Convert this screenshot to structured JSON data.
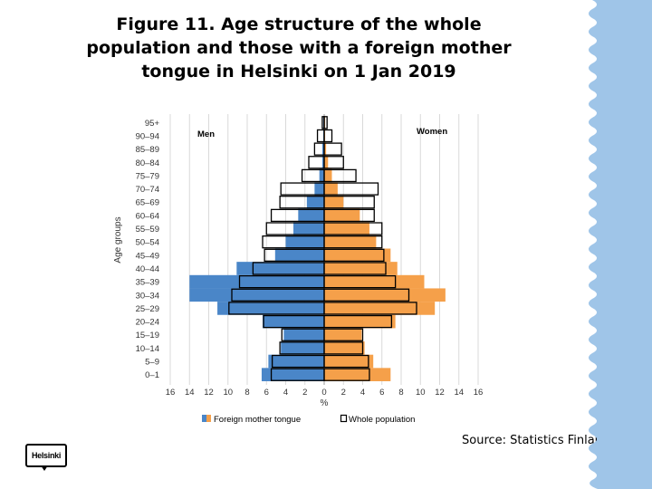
{
  "title_lines": [
    "Figure 11. Age structure of the whole",
    "population and those with a foreign mother",
    "tongue in Helsinki on 1 Jan 2019"
  ],
  "source": "Source: Statistics Finland",
  "logo_text": "Helsinki",
  "colors": {
    "foreign_men": "#4a86c8",
    "foreign_women": "#f5a04a",
    "whole_outline": "#000000",
    "background_strip": "#9fc5e8"
  },
  "chart_data": {
    "type": "bar",
    "orientation": "horizontal-population-pyramid",
    "ylabel": "Age groups",
    "xlabel": "%",
    "left_label": "Men",
    "right_label": "Women",
    "categories": [
      "95+",
      "90–94",
      "85–89",
      "80–84",
      "75–79",
      "70–74",
      "65–69",
      "60–64",
      "55–59",
      "50–54",
      "45–49",
      "40–44",
      "35–39",
      "30–34",
      "25–29",
      "20–24",
      "15–19",
      "10–14",
      "5–9",
      "0–1"
    ],
    "x_ticks": [
      "16",
      "14",
      "12",
      "10",
      "8",
      "6",
      "4",
      "2",
      "0",
      "2",
      "4",
      "6",
      "8",
      "10",
      "12",
      "14",
      "16"
    ],
    "xlim": [
      -16,
      16
    ],
    "grid": true,
    "legend_position": "bottom",
    "series": [
      {
        "name": "Foreign mother tongue",
        "side": "men",
        "values": [
          0.1,
          0.1,
          0.2,
          0.2,
          0.5,
          1.0,
          1.8,
          2.7,
          3.2,
          4.0,
          5.1,
          9.1,
          14.0,
          14.0,
          11.1,
          6.4,
          4.2,
          4.5,
          5.8,
          6.5
        ]
      },
      {
        "name": "Foreign mother tongue",
        "side": "women",
        "values": [
          0.1,
          0.1,
          0.2,
          0.4,
          0.8,
          1.4,
          2.0,
          3.7,
          4.7,
          5.4,
          6.9,
          7.6,
          10.4,
          12.6,
          11.5,
          7.4,
          3.9,
          4.2,
          5.1,
          6.9
        ]
      },
      {
        "name": "Whole population",
        "side": "men",
        "values": [
          0.2,
          0.7,
          1.0,
          1.6,
          2.3,
          4.5,
          4.6,
          5.5,
          6.0,
          6.4,
          6.2,
          7.4,
          8.8,
          9.6,
          9.9,
          6.3,
          4.4,
          4.6,
          5.4,
          5.5
        ]
      },
      {
        "name": "Whole population",
        "side": "women",
        "values": [
          0.3,
          0.8,
          1.8,
          2.0,
          3.3,
          5.6,
          5.2,
          5.2,
          6.0,
          6.0,
          6.2,
          6.4,
          7.4,
          8.8,
          9.6,
          7.0,
          4.0,
          4.0,
          4.6,
          4.7
        ]
      }
    ]
  }
}
